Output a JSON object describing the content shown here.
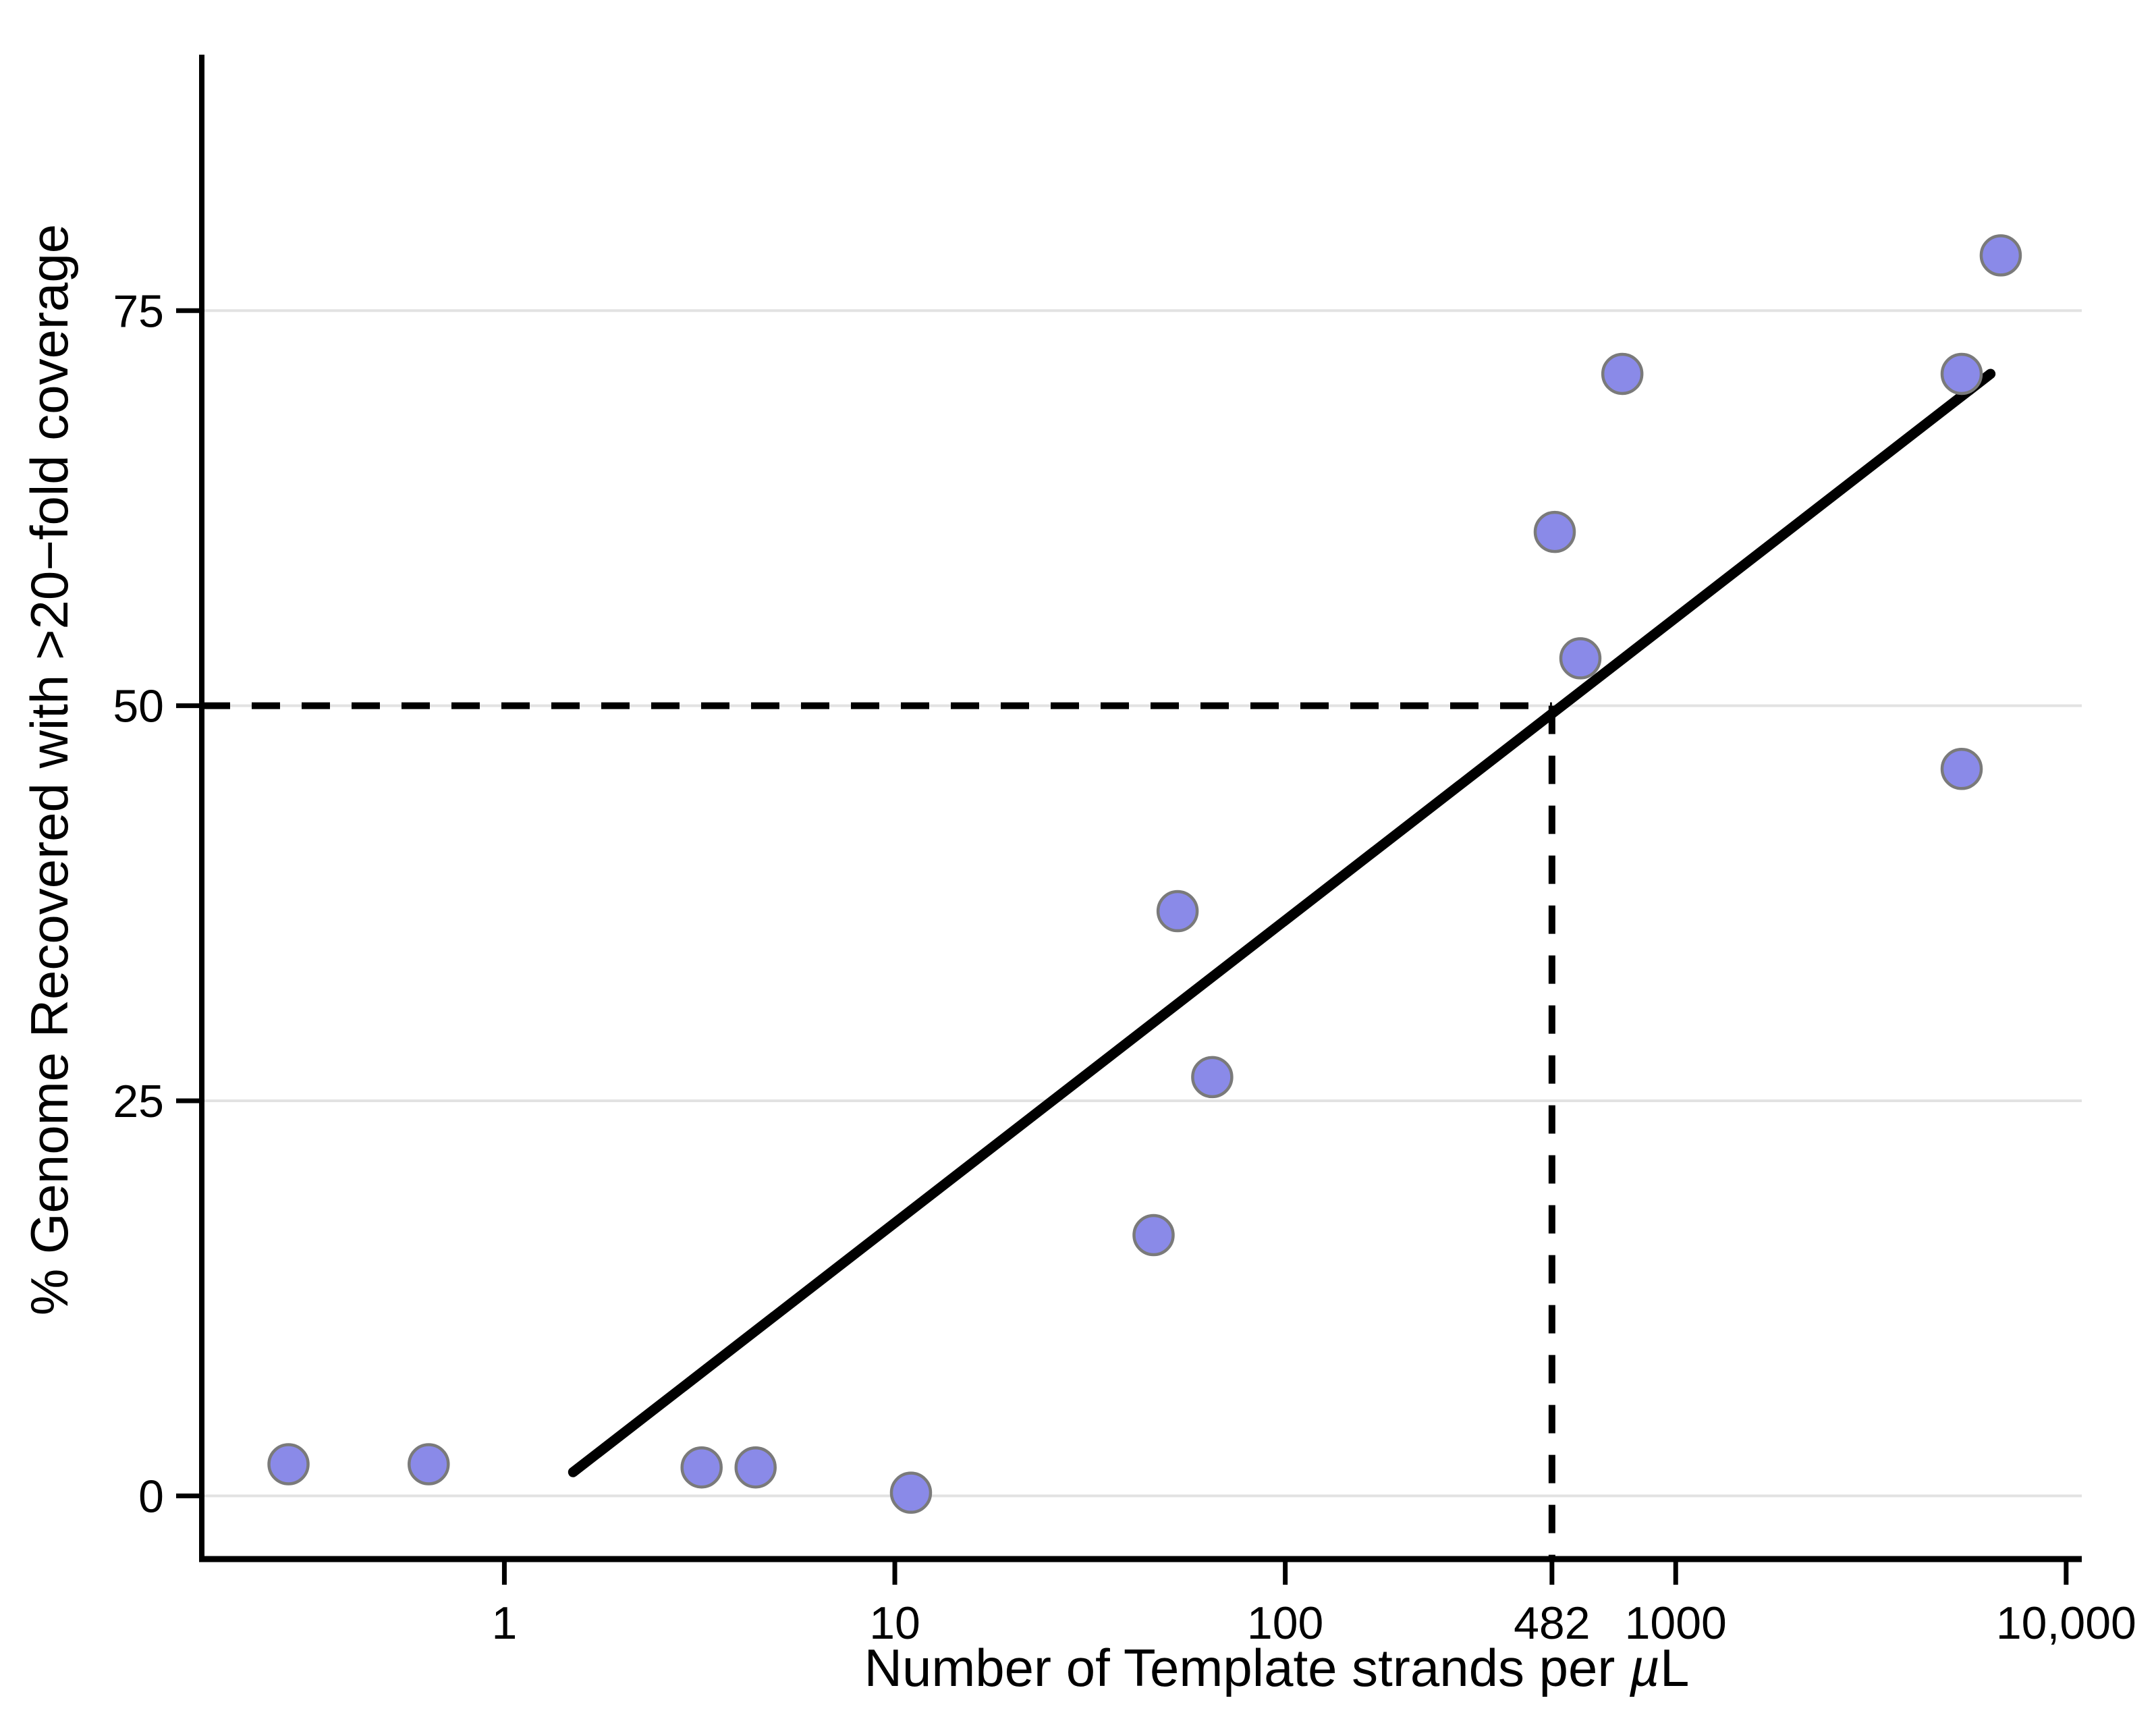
{
  "chart_data": {
    "type": "scatter",
    "title": "",
    "xlabel": "Number of Template strands per µL",
    "xlabel_parts": {
      "prefix": "Number of Template strands per ",
      "mu": "µ",
      "suffix": "L"
    },
    "ylabel": "% Genome Recovered with >20−fold coverage",
    "x_scale": "log10",
    "y_scale": "linear",
    "xlim_log10": [
      -0.775,
      4.04
    ],
    "ylim": [
      -4.0,
      91.2
    ],
    "grid": "horizontal-only",
    "legend_position": "none",
    "x_ticks": [
      {
        "value": 1,
        "label": "1"
      },
      {
        "value": 10,
        "label": "10"
      },
      {
        "value": 100,
        "label": "100"
      },
      {
        "value": 482,
        "label": "482"
      },
      {
        "value": 1000,
        "label": "1000"
      },
      {
        "value": 10000,
        "label": "10,000"
      }
    ],
    "y_ticks": [
      {
        "value": 0,
        "label": "0"
      },
      {
        "value": 25,
        "label": "25"
      },
      {
        "value": 50,
        "label": "50"
      },
      {
        "value": 75,
        "label": "75"
      }
    ],
    "points": [
      {
        "x": 0.28,
        "y": 2
      },
      {
        "x": 0.64,
        "y": 2
      },
      {
        "x": 3.2,
        "y": 1.8
      },
      {
        "x": 4.4,
        "y": 1.8
      },
      {
        "x": 11,
        "y": 0.2
      },
      {
        "x": 46,
        "y": 16.5
      },
      {
        "x": 53,
        "y": 37
      },
      {
        "x": 65,
        "y": 26.5
      },
      {
        "x": 490,
        "y": 61
      },
      {
        "x": 570,
        "y": 53
      },
      {
        "x": 730,
        "y": 71
      },
      {
        "x": 5400,
        "y": 71
      },
      {
        "x": 5400,
        "y": 46
      },
      {
        "x": 6800,
        "y": 78.5
      }
    ],
    "regression_line": {
      "x1": 1.5,
      "y1": 1.5,
      "x2": 6400,
      "y2": 71
    },
    "crosshair": {
      "x": 482,
      "y": 50
    },
    "colors": {
      "point_fill": "#8a8ae8",
      "point_stroke": "#7a7a7a",
      "gridline": "#e2e2e2",
      "axis": "#000000",
      "line": "#000000",
      "dashed": "#000000",
      "background": "#ffffff"
    }
  }
}
